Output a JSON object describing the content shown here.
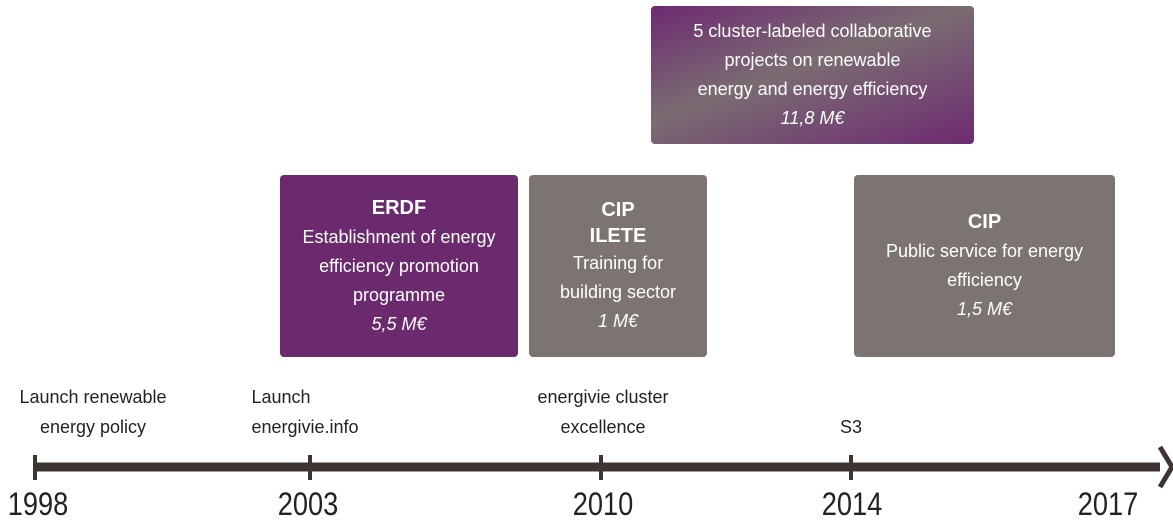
{
  "years": [
    "1998",
    "2003",
    "2010",
    "2014",
    "2017"
  ],
  "milestones": [
    {
      "lines": [
        "Launch renewable",
        "energy policy"
      ]
    },
    {
      "lines": [
        "Launch",
        "energivie.info"
      ]
    },
    {
      "lines": [
        "energivie cluster",
        "excellence"
      ]
    },
    {
      "lines": [
        "S3"
      ]
    }
  ],
  "boxes": [
    {
      "lines": [
        "5 cluster-labeled collaborative",
        "projects on renewable",
        "energy and energy efficiency"
      ],
      "amount": "11,8 M€"
    },
    {
      "title": [
        "ERDF"
      ],
      "lines": [
        "Establishment of energy",
        "efficiency promotion",
        "programme"
      ],
      "amount": "5,5 M€"
    },
    {
      "title": [
        "CIP",
        "ILETE"
      ],
      "lines": [
        "Training for",
        "building sector"
      ],
      "amount": "1 M€"
    },
    {
      "title": [
        "CIP"
      ],
      "lines": [
        "Public service for energy",
        "efficiency"
      ],
      "amount": "1,5 M€"
    }
  ]
}
